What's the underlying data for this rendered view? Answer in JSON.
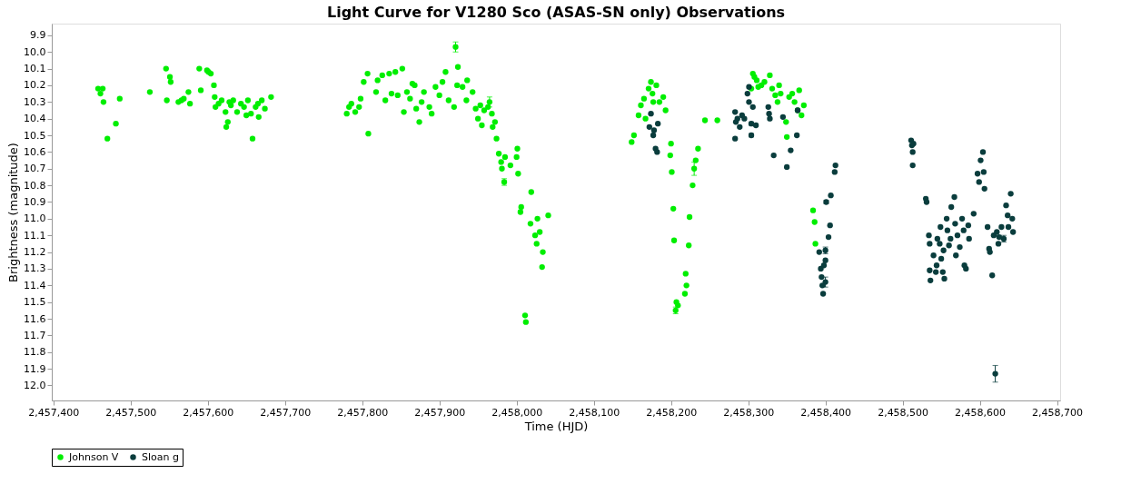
{
  "chart_data": {
    "type": "scatter",
    "title": "Light Curve for V1280 Sco (ASAS-SN only) Observations",
    "xlabel": "Time (HJD)",
    "ylabel": "Brightness (magnitude)",
    "xlim": [
      2457398,
      2458704
    ],
    "ylim": [
      12.09,
      9.83
    ],
    "xticks": [
      {
        "value": 2457400,
        "label": "2,457,400"
      },
      {
        "value": 2457500,
        "label": "2,457,500"
      },
      {
        "value": 2457600,
        "label": "2,457,600"
      },
      {
        "value": 2457700,
        "label": "2,457,700"
      },
      {
        "value": 2457800,
        "label": "2,457,800"
      },
      {
        "value": 2457900,
        "label": "2,457,900"
      },
      {
        "value": 2458000,
        "label": "2,458,000"
      },
      {
        "value": 2458100,
        "label": "2,458,100"
      },
      {
        "value": 2458200,
        "label": "2,458,200"
      },
      {
        "value": 2458300,
        "label": "2,458,300"
      },
      {
        "value": 2458400,
        "label": "2,458,400"
      },
      {
        "value": 2458500,
        "label": "2,458,500"
      },
      {
        "value": 2458600,
        "label": "2,458,600"
      },
      {
        "value": 2458700,
        "label": "2,458,700"
      }
    ],
    "yticks": [
      9.9,
      {
        "value": 10,
        "label": "10.0"
      },
      10.1,
      10.2,
      10.3,
      10.4,
      10.5,
      10.6,
      10.7,
      10.8,
      10.9,
      {
        "value": 11,
        "label": "11.0"
      },
      11.1,
      11.2,
      11.3,
      11.4,
      11.5,
      11.6,
      11.7,
      11.8,
      11.9,
      {
        "value": 12,
        "label": "12.0"
      }
    ],
    "grid": false,
    "legend": "bottom",
    "marker": "circle",
    "series": [
      {
        "name": "Johnson V",
        "color": "#00ee00",
        "x": [
          2457921,
          2457965,
          2457984,
          2458206,
          2458230,
          2457458,
          2457461,
          2457464,
          2457465,
          2457470,
          2457481,
          2457486,
          2457525,
          2457546,
          2457551,
          2457552,
          2457547,
          2457562,
          2457566,
          2457569,
          2457575,
          2457577,
          2457589,
          2457591,
          2457599,
          2457601,
          2457604,
          2457608,
          2457609,
          2457610,
          2457614,
          2457618,
          2457623,
          2457624,
          2457626,
          2457628,
          2457630,
          2457633,
          2457638,
          2457643,
          2457647,
          2457650,
          2457652,
          2457656,
          2457658,
          2457662,
          2457665,
          2457666,
          2457670,
          2457674,
          2457682,
          2457780,
          2457783,
          2457786,
          2457791,
          2457796,
          2457798,
          2457802,
          2457807,
          2457808,
          2457818,
          2457820,
          2457826,
          2457830,
          2457835,
          2457838,
          2457843,
          2457846,
          2457852,
          2457854,
          2457858,
          2457862,
          2457865,
          2457868,
          2457870,
          2457874,
          2457877,
          2457880,
          2457887,
          2457890,
          2457895,
          2457900,
          2457904,
          2457908,
          2457912,
          2457919,
          2457924,
          2457923,
          2457930,
          2457935,
          2457936,
          2457943,
          2457947,
          2457950,
          2457953,
          2457955,
          2457958,
          2457963,
          2457968,
          2457972,
          2457974,
          2457969,
          2457977,
          2457980,
          2457981,
          2457985,
          2457992,
          2458000,
          2458001,
          2458002,
          2458005,
          2458006,
          2458011,
          2458012,
          2458019,
          2458018,
          2458027,
          2458024,
          2458026,
          2458030,
          2458034,
          2458033,
          2458041,
          2458149,
          2458152,
          2458158,
          2458161,
          2458165,
          2458167,
          2458171,
          2458174,
          2458176,
          2458177,
          2458181,
          2458185,
          2458190,
          2458193,
          2458200,
          2458199,
          2458201,
          2458203,
          2458204,
          2458207,
          2458209,
          2458219,
          2458218,
          2458220,
          2458223,
          2458224,
          2458228,
          2458232,
          2458235,
          2458244,
          2458260,
          2458304,
          2458306,
          2458308,
          2458311,
          2458313,
          2458317,
          2458321,
          2458328,
          2458331,
          2458335,
          2458338,
          2458340,
          2458342,
          2458349,
          2458350,
          2458353,
          2458357,
          2458360,
          2458364,
          2458366,
          2458369,
          2458372,
          2458384,
          2458386,
          2458387
        ],
        "values": [
          9.97,
          10.3,
          10.78,
          11.55,
          10.7,
          10.22,
          10.25,
          10.22,
          10.3,
          10.52,
          10.43,
          10.28,
          10.24,
          10.1,
          10.15,
          10.18,
          10.29,
          10.3,
          10.29,
          10.28,
          10.24,
          10.31,
          10.1,
          10.23,
          10.11,
          10.12,
          10.13,
          10.2,
          10.27,
          10.33,
          10.31,
          10.29,
          10.36,
          10.45,
          10.42,
          10.3,
          10.32,
          10.29,
          10.36,
          10.31,
          10.33,
          10.38,
          10.29,
          10.37,
          10.52,
          10.33,
          10.31,
          10.39,
          10.29,
          10.34,
          10.27,
          10.37,
          10.33,
          10.31,
          10.36,
          10.33,
          10.28,
          10.18,
          10.13,
          10.49,
          10.24,
          10.17,
          10.14,
          10.29,
          10.13,
          10.25,
          10.12,
          10.26,
          10.1,
          10.36,
          10.24,
          10.28,
          10.19,
          10.2,
          10.34,
          10.42,
          10.3,
          10.24,
          10.33,
          10.37,
          10.21,
          10.26,
          10.18,
          10.12,
          10.29,
          10.33,
          10.09,
          10.2,
          10.21,
          10.29,
          10.17,
          10.24,
          10.34,
          10.4,
          10.32,
          10.44,
          10.35,
          10.33,
          10.37,
          10.42,
          10.52,
          10.45,
          10.61,
          10.66,
          10.7,
          10.63,
          10.68,
          10.63,
          10.58,
          10.73,
          10.96,
          10.93,
          11.58,
          11.62,
          10.84,
          11.03,
          11.0,
          11.1,
          11.15,
          11.08,
          11.2,
          11.29,
          10.98,
          10.54,
          10.5,
          10.38,
          10.32,
          10.28,
          10.4,
          10.22,
          10.18,
          10.25,
          10.3,
          10.2,
          10.3,
          10.27,
          10.35,
          10.55,
          10.62,
          10.72,
          10.94,
          11.13,
          11.5,
          11.52,
          11.33,
          11.45,
          11.4,
          11.16,
          10.99,
          10.8,
          10.65,
          10.58,
          10.41,
          10.41,
          10.22,
          10.13,
          10.15,
          10.17,
          10.21,
          10.2,
          10.18,
          10.14,
          10.22,
          10.26,
          10.3,
          10.2,
          10.25,
          10.42,
          10.51,
          10.27,
          10.25,
          10.3,
          10.35,
          10.23,
          10.38,
          10.32,
          10.95,
          11.02,
          11.15
        ],
        "errors": [
          0.03,
          0.03,
          0.02,
          0.02,
          0.04,
          null,
          null,
          null,
          null,
          null,
          null,
          null,
          null,
          null,
          null,
          null,
          null,
          null,
          null,
          null,
          null,
          null,
          null,
          null,
          null,
          null,
          null,
          null,
          null,
          null,
          null,
          null,
          null,
          null,
          null,
          null,
          null,
          null,
          null,
          null,
          null,
          null,
          null,
          null,
          null,
          null,
          null,
          null,
          null,
          null,
          null,
          null,
          null,
          null,
          null,
          null,
          null,
          null,
          null,
          null,
          null,
          null,
          null,
          null,
          null,
          null,
          null,
          null,
          null,
          null,
          null,
          null,
          null,
          null,
          null,
          null,
          null,
          null,
          null,
          null,
          null,
          null,
          null,
          null,
          null,
          null,
          null,
          null,
          null,
          null,
          null,
          null,
          null,
          null,
          null,
          null,
          null,
          null,
          null,
          null,
          null,
          null,
          null,
          null,
          null,
          null,
          null,
          null,
          null,
          null,
          null,
          null,
          null,
          null,
          null,
          null,
          null,
          null,
          null,
          null,
          null,
          null,
          null,
          null,
          null,
          null,
          null,
          null,
          null,
          null,
          null,
          null,
          null,
          null,
          null,
          null,
          null,
          null,
          null,
          null,
          null,
          null,
          null,
          null,
          null,
          null,
          null,
          null,
          null,
          null,
          null,
          null,
          null,
          null,
          null,
          null,
          null,
          null,
          null,
          null,
          null,
          null,
          null,
          null,
          null,
          null,
          null,
          null,
          null,
          null,
          null,
          null,
          null,
          null,
          null,
          null,
          null,
          null,
          null
        ]
      },
      {
        "name": "Sloan g",
        "color": "#0a3d3d",
        "x": [
          2458304,
          2458304,
          2458401,
          2458400,
          2458400,
          2458620,
          2458631,
          2458172,
          2458174,
          2458177,
          2458178,
          2458180,
          2458183,
          2458182,
          2458283,
          2458284,
          2458283,
          2458286,
          2458289,
          2458292,
          2458295,
          2458299,
          2458301,
          2458301,
          2458306,
          2458310,
          2458326,
          2458327,
          2458328,
          2458333,
          2458345,
          2458350,
          2458355,
          2458363,
          2458364,
          2458392,
          2458394,
          2458395,
          2458396,
          2458397,
          2458398,
          2458400,
          2458404,
          2458406,
          2458407,
          2458412,
          2458413,
          2458511,
          2458512,
          2458513,
          2458514,
          2458513,
          2458530,
          2458531,
          2458534,
          2458535,
          2458535,
          2458536,
          2458540,
          2458543,
          2458544,
          2458545,
          2458548,
          2458549,
          2458550,
          2458552,
          2458554,
          2458553,
          2458557,
          2458558,
          2458560,
          2458562,
          2458563,
          2458567,
          2458568,
          2458569,
          2458571,
          2458574,
          2458577,
          2458579,
          2458580,
          2458582,
          2458585,
          2458586,
          2458592,
          2458597,
          2458599,
          2458601,
          2458604,
          2458605,
          2458606,
          2458610,
          2458612,
          2458613,
          2458616,
          2458618,
          2458622,
          2458624,
          2458625,
          2458628,
          2458634,
          2458636,
          2458637,
          2458640,
          2458642,
          2458643
        ],
        "values": [
          10.43,
          10.5,
          10.9,
          11.19,
          11.38,
          11.93,
          11.12,
          10.45,
          10.37,
          10.5,
          10.47,
          10.58,
          10.43,
          10.6,
          10.36,
          10.42,
          10.52,
          10.4,
          10.45,
          10.38,
          10.4,
          10.25,
          10.21,
          10.3,
          10.33,
          10.44,
          10.33,
          10.37,
          10.4,
          10.62,
          10.39,
          10.69,
          10.59,
          10.5,
          10.35,
          11.2,
          11.3,
          11.35,
          11.4,
          11.45,
          11.28,
          11.25,
          11.11,
          11.04,
          10.86,
          10.72,
          10.68,
          10.53,
          10.56,
          10.6,
          10.55,
          10.68,
          10.88,
          10.9,
          11.1,
          11.15,
          11.31,
          11.37,
          11.22,
          11.32,
          11.28,
          11.12,
          11.15,
          11.05,
          11.24,
          11.32,
          11.36,
          11.19,
          11.0,
          11.07,
          11.16,
          11.12,
          10.93,
          10.87,
          11.03,
          11.22,
          11.1,
          11.17,
          11.0,
          11.07,
          11.28,
          11.3,
          11.04,
          11.12,
          10.97,
          10.73,
          10.78,
          10.65,
          10.6,
          10.72,
          10.82,
          11.05,
          11.18,
          11.2,
          11.34,
          11.1,
          11.08,
          11.15,
          11.11,
          11.05,
          10.92,
          10.98,
          11.05,
          10.85,
          11.0,
          11.08
        ],
        "errors": [
          0.01,
          0.01,
          0.01,
          0.02,
          0.03,
          0.05,
          0.02,
          null,
          null,
          null,
          null,
          null,
          null,
          null,
          null,
          null,
          null,
          null,
          null,
          null,
          null,
          null,
          null,
          null,
          null,
          null,
          null,
          null,
          null,
          null,
          null,
          null,
          null,
          null,
          null,
          null,
          null,
          null,
          null,
          null,
          null,
          null,
          null,
          null,
          null,
          null,
          null,
          null,
          null,
          null,
          null,
          null,
          null,
          null,
          null,
          null,
          null,
          null,
          null,
          null,
          null,
          null,
          null,
          null,
          null,
          null,
          null,
          null,
          null,
          null,
          null,
          null,
          null,
          null,
          null,
          null,
          null,
          null,
          null,
          null,
          null,
          null,
          null,
          null,
          null,
          null,
          null,
          null,
          null,
          null,
          null,
          null,
          null,
          null,
          null,
          null,
          null,
          null,
          null,
          null,
          null,
          null,
          null,
          null,
          null,
          null
        ]
      }
    ]
  }
}
